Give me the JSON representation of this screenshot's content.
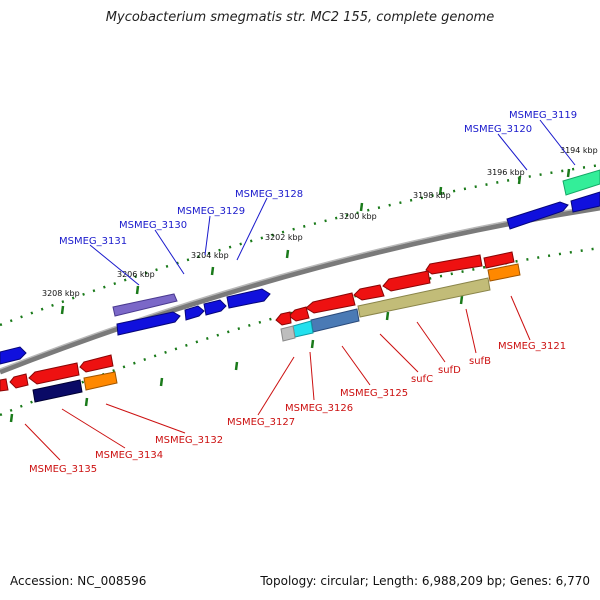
{
  "title": "Mycobacterium smegmatis str. MC2 155, complete genome",
  "footer": {
    "accession": "Accession: NC_008596",
    "summary": "Topology: circular; Length: 6,988,209 bp; Genes: 6,770"
  },
  "colors": {
    "backbone": "#8c8c8c",
    "ticks": "#1a7a1a",
    "forward_label": "#1a1acc",
    "reverse_label": "#cc1111",
    "blue": "#1010dd",
    "red": "#ee1111",
    "orange": "#ff8800",
    "navy": "#0a0a66",
    "slate": "#7b68c8",
    "teal": "#33ee99",
    "cyan": "#22e0ee",
    "steel": "#4a7ab5",
    "olive": "#c2bc78",
    "gray": "#bdbdbd"
  },
  "kbp_ticks": [
    {
      "label": "3194 kbp"
    },
    {
      "label": "3196 kbp"
    },
    {
      "label": "3198 kbp"
    },
    {
      "label": "3200 kbp"
    },
    {
      "label": "3202 kbp"
    },
    {
      "label": "3204 kbp"
    },
    {
      "label": "3206 kbp"
    },
    {
      "label": "3208 kbp"
    }
  ],
  "gene_labels": [
    {
      "name": "MSMEG_3119",
      "strand": "forward"
    },
    {
      "name": "MSMEG_3120",
      "strand": "forward"
    },
    {
      "name": "MSMEG_3128",
      "strand": "forward"
    },
    {
      "name": "MSMEG_3129",
      "strand": "forward"
    },
    {
      "name": "MSMEG_3130",
      "strand": "forward"
    },
    {
      "name": "MSMEG_3131",
      "strand": "forward"
    },
    {
      "name": "MSMEG_3121",
      "strand": "reverse"
    },
    {
      "name": "sufB",
      "strand": "reverse"
    },
    {
      "name": "sufD",
      "strand": "reverse"
    },
    {
      "name": "sufC",
      "strand": "reverse"
    },
    {
      "name": "MSMEG_3125",
      "strand": "reverse"
    },
    {
      "name": "MSMEG_3126",
      "strand": "reverse"
    },
    {
      "name": "MSMEG_3127",
      "strand": "reverse"
    },
    {
      "name": "MSMEG_3132",
      "strand": "reverse"
    },
    {
      "name": "MSMEG_3134",
      "strand": "reverse"
    },
    {
      "name": "MSMEG_3135",
      "strand": "reverse"
    }
  ]
}
